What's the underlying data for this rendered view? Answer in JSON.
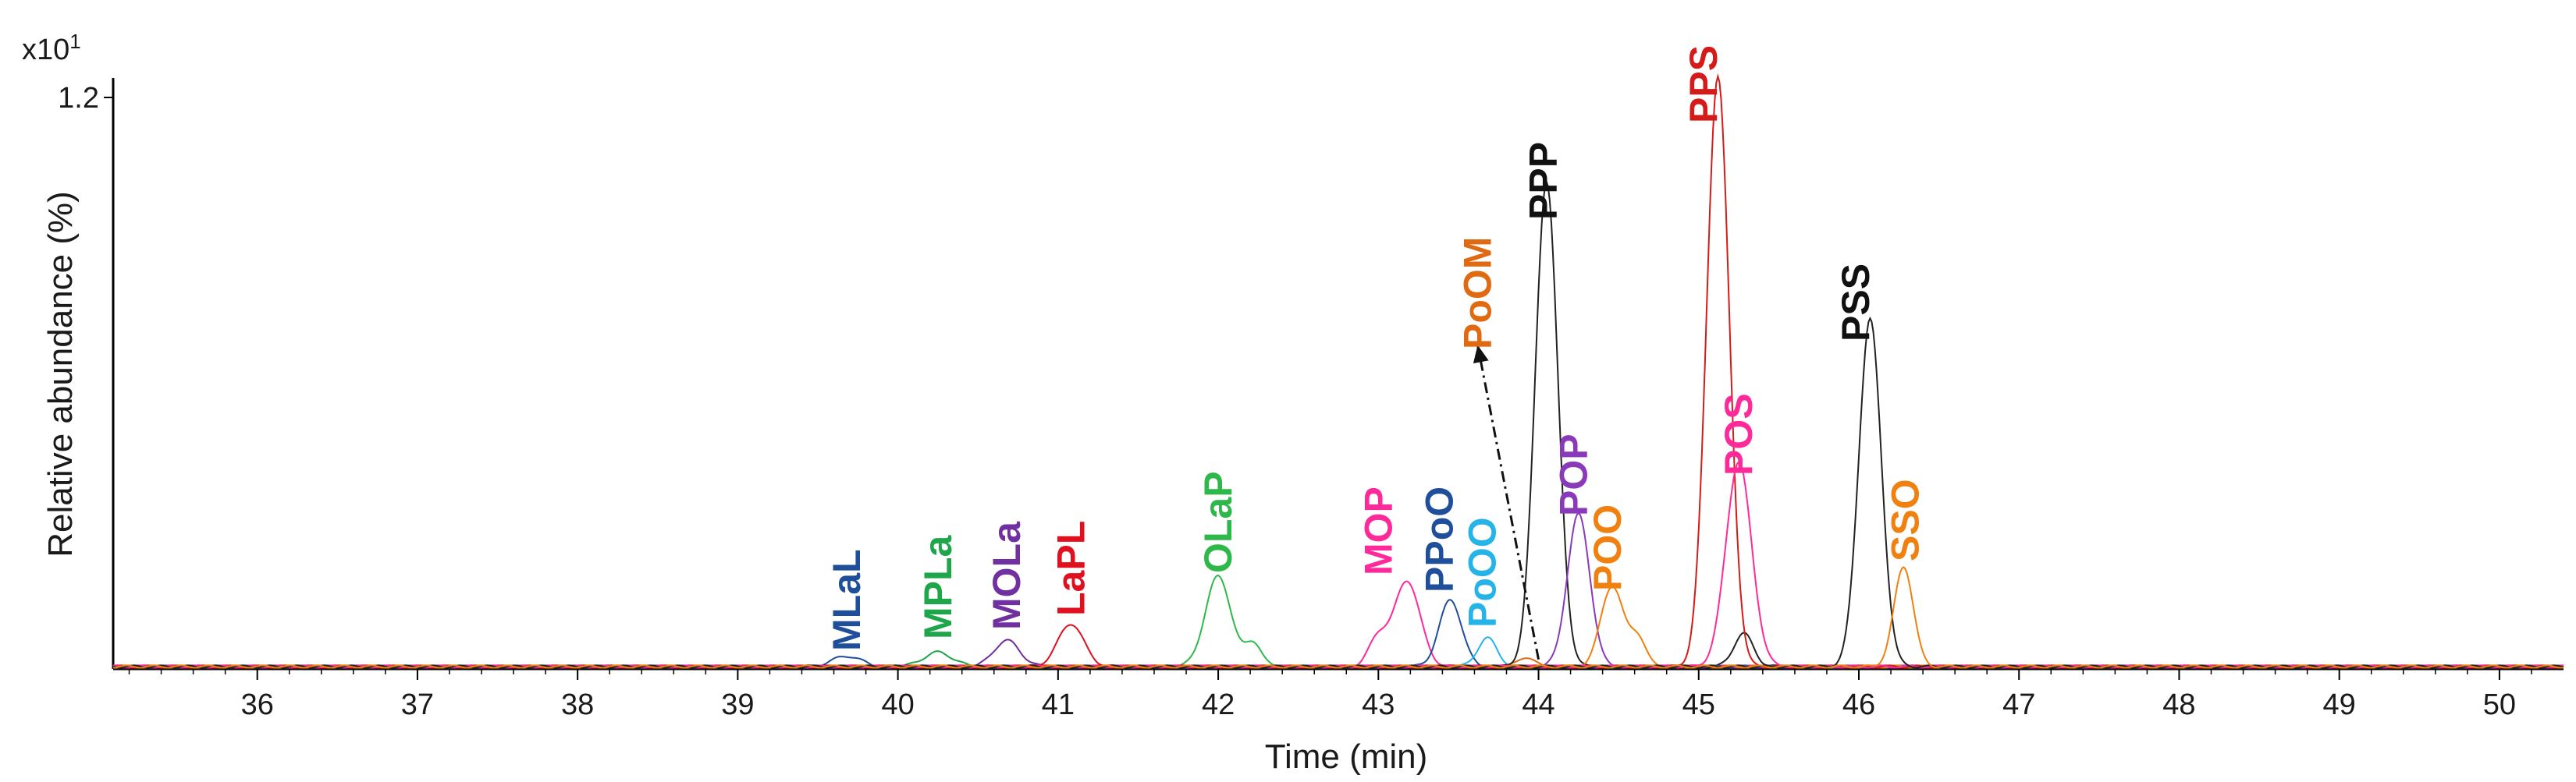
{
  "chart_data": {
    "type": "line",
    "title": "",
    "xlabel": "Time (min)",
    "ylabel": "Relative abundance (%)",
    "y_multiplier_label": "x10",
    "y_multiplier_exp": "1",
    "xlim": [
      35.1,
      50.4
    ],
    "ylim": [
      0,
      1.2
    ],
    "x_ticks": [
      36,
      37,
      38,
      39,
      40,
      41,
      42,
      43,
      44,
      45,
      46,
      47,
      48,
      49,
      50
    ],
    "y_ticks": [
      {
        "value": 1.2,
        "label": "1.2"
      }
    ],
    "baseline": 0.005,
    "series": [
      {
        "name": "MLaL",
        "color": "#1f4e9a",
        "peaks": [
          {
            "t": 39.68,
            "h": 0.022,
            "w": 0.09
          }
        ]
      },
      {
        "name": "MPLa",
        "color": "#1fa64a",
        "peaks": [
          {
            "t": 40.25,
            "h": 0.03,
            "w": 0.09
          }
        ]
      },
      {
        "name": "MOLa",
        "color": "#7030a0",
        "peaks": [
          {
            "t": 40.68,
            "h": 0.055,
            "w": 0.08
          }
        ]
      },
      {
        "name": "LaPL",
        "color": "#e0101e",
        "peaks": [
          {
            "t": 41.08,
            "h": 0.09,
            "w": 0.08
          }
        ]
      },
      {
        "name": "OLaP",
        "color": "#2eb84a",
        "peaks": [
          {
            "t": 42.0,
            "h": 0.19,
            "w": 0.08
          },
          {
            "t": 42.22,
            "h": 0.05,
            "w": 0.05
          }
        ]
      },
      {
        "name": "MOP",
        "color": "#ff2a9a",
        "peaks": [
          {
            "t": 43.0,
            "h": 0.06,
            "w": 0.06
          },
          {
            "t": 43.18,
            "h": 0.18,
            "w": 0.08
          }
        ]
      },
      {
        "name": "PPoO",
        "color": "#1f4e9a",
        "peaks": [
          {
            "t": 43.45,
            "h": 0.14,
            "w": 0.07
          }
        ]
      },
      {
        "name": "PoOO",
        "color": "#26b4e8",
        "peaks": [
          {
            "t": 43.68,
            "h": 0.06,
            "w": 0.06
          }
        ]
      },
      {
        "name": "PoOM",
        "color": "#e06a12",
        "peaks": [
          {
            "t": 43.92,
            "h": 0.02,
            "w": 0.05
          }
        ]
      },
      {
        "name": "PPP",
        "color": "#222222",
        "peaks": [
          {
            "t": 44.05,
            "h": 1.02,
            "w": 0.07
          },
          {
            "t": 45.28,
            "h": 0.07,
            "w": 0.06
          }
        ]
      },
      {
        "name": "POP",
        "color": "#8a3ab9",
        "peaks": [
          {
            "t": 44.25,
            "h": 0.32,
            "w": 0.07
          }
        ]
      },
      {
        "name": "POO",
        "color": "#f08010",
        "peaks": [
          {
            "t": 44.46,
            "h": 0.17,
            "w": 0.07
          },
          {
            "t": 44.62,
            "h": 0.06,
            "w": 0.05
          }
        ]
      },
      {
        "name": "PPS",
        "color": "#d51a1a",
        "peaks": [
          {
            "t": 45.12,
            "h": 1.24,
            "w": 0.07
          }
        ]
      },
      {
        "name": "POS",
        "color": "#ff2a9a",
        "peaks": [
          {
            "t": 45.25,
            "h": 0.43,
            "w": 0.08
          }
        ]
      },
      {
        "name": "PSS",
        "color": "#222222",
        "peaks": [
          {
            "t": 46.07,
            "h": 0.73,
            "w": 0.07
          }
        ]
      },
      {
        "name": "SSO",
        "color": "#f08010",
        "peaks": [
          {
            "t": 46.28,
            "h": 0.21,
            "w": 0.06
          }
        ]
      }
    ],
    "annotations": [
      {
        "text": "MLaL",
        "color": "#1f4e9a",
        "x": 39.68
      },
      {
        "text": "MPLa",
        "color": "#1fa64a",
        "x": 40.25
      },
      {
        "text": "MOLa",
        "color": "#7030a0",
        "x": 40.68
      },
      {
        "text": "LaPL",
        "color": "#e0101e",
        "x": 41.08
      },
      {
        "text": "OLaP",
        "color": "#2eb84a",
        "x": 42.0
      },
      {
        "text": "MOP",
        "color": "#ff2a9a",
        "x": 43.0
      },
      {
        "text": "PPoO",
        "color": "#1f4e9a",
        "x": 43.38
      },
      {
        "text": "PoOO",
        "color": "#26b4e8",
        "x": 43.65
      },
      {
        "text": "PoOM",
        "color": "#e06a12",
        "x": 43.62
      },
      {
        "text": "PPP",
        "color": "#111111",
        "x": 44.03
      },
      {
        "text": "POP",
        "color": "#8a3ab9",
        "x": 44.22
      },
      {
        "text": "POO",
        "color": "#f08010",
        "x": 44.43
      },
      {
        "text": "PPS",
        "color": "#d51a1a",
        "x": 45.03
      },
      {
        "text": "POS",
        "color": "#ff2a9a",
        "x": 45.25
      },
      {
        "text": "PSS",
        "color": "#111111",
        "x": 45.98
      },
      {
        "text": "SSO",
        "color": "#f08010",
        "x": 46.29
      }
    ],
    "arrow": {
      "from_x": 44.0,
      "from_y": 0.02,
      "to_x": 43.62,
      "to_y": 0.68
    }
  }
}
